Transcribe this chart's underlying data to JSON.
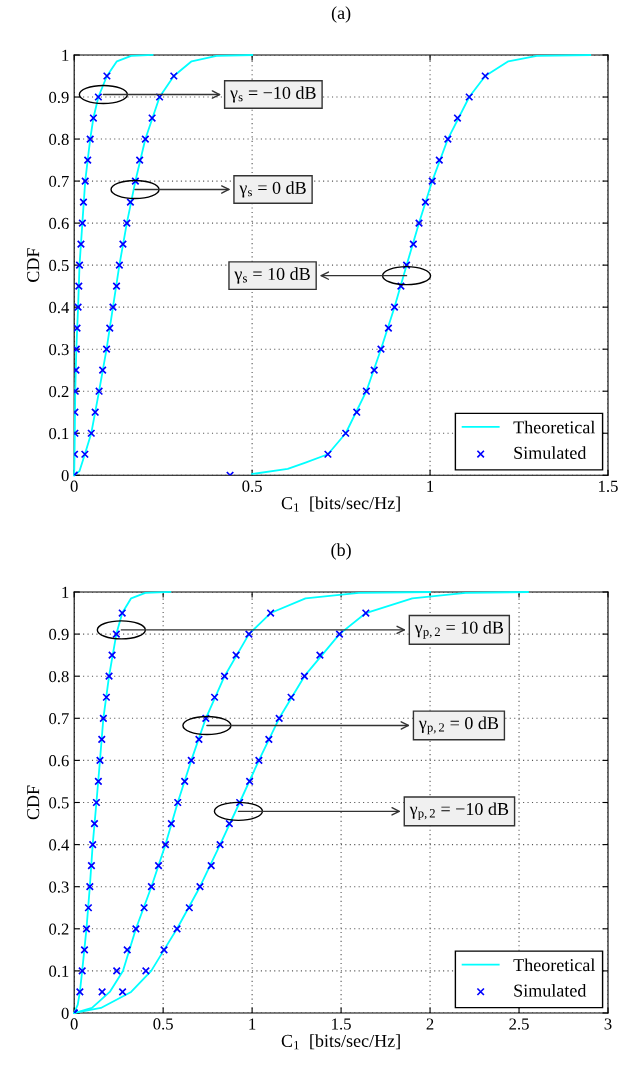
{
  "chart_data": [
    {
      "type": "line",
      "title": "(a)",
      "xlabel": "C$_{1}$  [bits/sec/Hz]",
      "ylabel": "CDF",
      "xlim": [
        0,
        1.5
      ],
      "xticks": [
        0,
        0.5,
        1,
        1.5
      ],
      "ylim": [
        0,
        1
      ],
      "yticks": [
        0,
        0.1,
        0.2,
        0.3,
        0.4,
        0.5,
        0.6,
        0.7,
        0.8,
        0.9,
        1
      ],
      "grid": true,
      "legend": "bottom right",
      "annotations": [
        {
          "text": "γ$_{s}$ = −10 dB",
          "x": 0.082,
          "y": 0.906
        },
        {
          "text": "γ$_{s}$ = 0 dB",
          "x": 0.171,
          "y": 0.68
        },
        {
          "text": "γ$_{s}$ = 10 dB",
          "x": 0.934,
          "y": 0.475
        }
      ],
      "series": [
        {
          "name": "Theoretical",
          "color": "#00ffff",
          "line_style": "solid",
          "x": [
            0,
            0.001,
            0.003,
            0.006,
            0.011,
            0.015,
            0.019,
            0.023,
            0.031,
            0.038,
            0.045,
            0.054,
            0.068,
            0.092,
            0.12,
            0.16,
            0.22
          ],
          "values": [
            0,
            0.05,
            0.2,
            0.3,
            0.4,
            0.5,
            0.55,
            0.6,
            0.7,
            0.75,
            0.8,
            0.85,
            0.9,
            0.95,
            0.985,
            0.998,
            1
          ]
        },
        {
          "color": "#00ffff",
          "line_style": "solid",
          "x": [
            0,
            0.015,
            0.03,
            0.048,
            0.07,
            0.091,
            0.109,
            0.127,
            0.148,
            0.172,
            0.2,
            0.24,
            0.28,
            0.33,
            0.4,
            0.5
          ],
          "values": [
            0,
            0.01,
            0.05,
            0.1,
            0.2,
            0.3,
            0.4,
            0.5,
            0.6,
            0.7,
            0.8,
            0.9,
            0.95,
            0.985,
            0.998,
            1
          ]
        },
        {
          "color": "#00ffff",
          "line_style": "solid",
          "x": [
            0.5,
            0.6,
            0.65,
            0.713,
            0.763,
            0.821,
            0.862,
            0.9,
            0.934,
            0.969,
            1.006,
            1.05,
            1.11,
            1.155,
            1.22,
            1.3,
            1.45
          ],
          "values": [
            0.003,
            0.015,
            0.03,
            0.05,
            0.1,
            0.2,
            0.3,
            0.4,
            0.5,
            0.6,
            0.7,
            0.8,
            0.9,
            0.95,
            0.985,
            0.998,
            1
          ]
        },
        {
          "name": "Simulated",
          "type": "scatter",
          "marker": "cross",
          "color": "#0000ff",
          "x": [
            0,
            0.001,
            0.002,
            0.002,
            0.003,
            0.005,
            0.006,
            0.008,
            0.011,
            0.013,
            0.015,
            0.019,
            0.023,
            0.026,
            0.031,
            0.038,
            0.045,
            0.054,
            0.068,
            0.092
          ],
          "values": [
            0,
            0.05,
            0.1,
            0.15,
            0.2,
            0.25,
            0.3,
            0.35,
            0.4,
            0.45,
            0.5,
            0.55,
            0.6,
            0.65,
            0.7,
            0.75,
            0.8,
            0.85,
            0.9,
            0.95
          ]
        },
        {
          "type": "scatter",
          "marker": "cross",
          "color": "#0000ff",
          "x": [
            0,
            0.03,
            0.048,
            0.059,
            0.07,
            0.08,
            0.091,
            0.1,
            0.109,
            0.119,
            0.127,
            0.137,
            0.148,
            0.158,
            0.172,
            0.184,
            0.2,
            0.219,
            0.24,
            0.28
          ],
          "values": [
            0,
            0.05,
            0.1,
            0.15,
            0.2,
            0.25,
            0.3,
            0.35,
            0.4,
            0.45,
            0.5,
            0.55,
            0.6,
            0.65,
            0.7,
            0.75,
            0.8,
            0.85,
            0.9,
            0.95
          ]
        },
        {
          "type": "scatter",
          "marker": "cross",
          "color": "#0000ff",
          "x": [
            0.438,
            0.713,
            0.763,
            0.794,
            0.821,
            0.843,
            0.862,
            0.883,
            0.9,
            0.918,
            0.934,
            0.953,
            0.969,
            0.987,
            1.006,
            1.026,
            1.05,
            1.077,
            1.11,
            1.155
          ],
          "values": [
            0,
            0.05,
            0.1,
            0.15,
            0.2,
            0.25,
            0.3,
            0.35,
            0.4,
            0.45,
            0.5,
            0.55,
            0.6,
            0.65,
            0.7,
            0.75,
            0.8,
            0.85,
            0.9,
            0.95
          ]
        }
      ]
    },
    {
      "type": "line",
      "title": "(b)",
      "xlabel": "C$_{1}$  [bits/sec/Hz]",
      "ylabel": "CDF",
      "xlim": [
        0,
        3
      ],
      "xticks": [
        0,
        0.5,
        1,
        1.5,
        2,
        2.5,
        3
      ],
      "ylim": [
        0,
        1
      ],
      "yticks": [
        0,
        0.1,
        0.2,
        0.3,
        0.4,
        0.5,
        0.6,
        0.7,
        0.8,
        0.9,
        1
      ],
      "grid": true,
      "legend": "bottom right",
      "annotations": [
        {
          "text": "γ$_{p,2}$ = 10 dB",
          "x": 0.265,
          "y": 0.91
        },
        {
          "text": "γ$_{p,2}$ = 0 dB",
          "x": 0.746,
          "y": 0.683
        },
        {
          "text": "γ$_{p,2}$ = −10 dB",
          "x": 0.923,
          "y": 0.479
        }
      ],
      "series": [
        {
          "name": "Theoretical",
          "color": "#00ffff",
          "line_style": "solid",
          "x": [
            0,
            0.02,
            0.032,
            0.045,
            0.069,
            0.088,
            0.104,
            0.125,
            0.145,
            0.164,
            0.196,
            0.237,
            0.27,
            0.32,
            0.4,
            0.54
          ],
          "values": [
            0,
            0.02,
            0.05,
            0.1,
            0.2,
            0.3,
            0.4,
            0.5,
            0.6,
            0.7,
            0.8,
            0.9,
            0.95,
            0.985,
            0.998,
            1
          ]
        },
        {
          "color": "#00ffff",
          "line_style": "solid",
          "x": [
            0,
            0.1,
            0.2,
            0.274,
            0.347,
            0.434,
            0.513,
            0.582,
            0.658,
            0.74,
            0.845,
            0.982,
            1.104,
            1.3,
            1.6,
            2.0
          ],
          "values": [
            0,
            0.012,
            0.05,
            0.1,
            0.2,
            0.3,
            0.4,
            0.5,
            0.6,
            0.7,
            0.8,
            0.9,
            0.95,
            0.985,
            0.998,
            1
          ]
        },
        {
          "color": "#00ffff",
          "line_style": "solid",
          "x": [
            0,
            0.15,
            0.32,
            0.433,
            0.505,
            0.578,
            0.707,
            0.82,
            0.93,
            1.038,
            1.152,
            1.294,
            1.491,
            1.639,
            1.9,
            2.2,
            2.55
          ],
          "values": [
            0,
            0.012,
            0.05,
            0.1,
            0.15,
            0.2,
            0.3,
            0.4,
            0.5,
            0.6,
            0.7,
            0.8,
            0.9,
            0.95,
            0.985,
            0.998,
            1
          ]
        },
        {
          "name": "Simulated",
          "type": "scatter",
          "marker": "cross",
          "color": "#0000ff",
          "x": [
            0,
            0.032,
            0.045,
            0.058,
            0.069,
            0.08,
            0.088,
            0.097,
            0.104,
            0.114,
            0.125,
            0.136,
            0.145,
            0.155,
            0.164,
            0.181,
            0.196,
            0.213,
            0.237,
            0.27
          ],
          "values": [
            0,
            0.05,
            0.1,
            0.15,
            0.2,
            0.25,
            0.3,
            0.35,
            0.4,
            0.45,
            0.5,
            0.55,
            0.6,
            0.65,
            0.7,
            0.75,
            0.8,
            0.85,
            0.9,
            0.95
          ]
        },
        {
          "type": "scatter",
          "marker": "cross",
          "color": "#0000ff",
          "x": [
            0,
            0.157,
            0.239,
            0.298,
            0.347,
            0.393,
            0.434,
            0.474,
            0.513,
            0.546,
            0.582,
            0.621,
            0.658,
            0.701,
            0.74,
            0.789,
            0.845,
            0.91,
            0.982,
            1.104
          ],
          "values": [
            0,
            0.05,
            0.1,
            0.15,
            0.2,
            0.25,
            0.3,
            0.35,
            0.4,
            0.45,
            0.5,
            0.55,
            0.6,
            0.65,
            0.7,
            0.75,
            0.8,
            0.85,
            0.9,
            0.95
          ]
        },
        {
          "type": "scatter",
          "marker": "cross",
          "color": "#0000ff",
          "x": [
            0,
            0.272,
            0.403,
            0.505,
            0.578,
            0.647,
            0.707,
            0.77,
            0.82,
            0.872,
            0.93,
            0.986,
            1.038,
            1.094,
            1.152,
            1.219,
            1.294,
            1.381,
            1.491,
            1.639
          ],
          "values": [
            0,
            0.05,
            0.1,
            0.15,
            0.2,
            0.25,
            0.3,
            0.35,
            0.4,
            0.45,
            0.5,
            0.55,
            0.6,
            0.65,
            0.7,
            0.75,
            0.8,
            0.85,
            0.9,
            0.95
          ]
        }
      ]
    }
  ]
}
